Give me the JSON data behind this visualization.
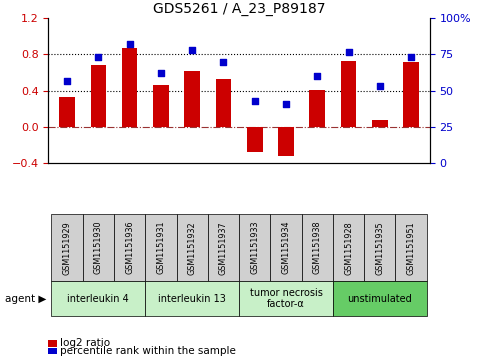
{
  "title": "GDS5261 / A_23_P89187",
  "samples": [
    "GSM1151929",
    "GSM1151930",
    "GSM1151936",
    "GSM1151931",
    "GSM1151932",
    "GSM1151937",
    "GSM1151933",
    "GSM1151934",
    "GSM1151938",
    "GSM1151928",
    "GSM1151935",
    "GSM1151951"
  ],
  "log2_ratio": [
    0.33,
    0.68,
    0.87,
    0.46,
    0.62,
    0.53,
    -0.27,
    -0.32,
    0.41,
    0.73,
    0.08,
    0.72
  ],
  "percentile_rank": [
    57,
    73,
    82,
    62,
    78,
    70,
    43,
    41,
    60,
    77,
    53,
    73
  ],
  "agent_groups": [
    {
      "label": "interleukin 4",
      "start": 0,
      "end": 3,
      "color": "#c8f0c8"
    },
    {
      "label": "interleukin 13",
      "start": 3,
      "end": 6,
      "color": "#c8f0c8"
    },
    {
      "label": "tumor necrosis\nfactor-α",
      "start": 6,
      "end": 9,
      "color": "#c8f0c8"
    },
    {
      "label": "unstimulated",
      "start": 9,
      "end": 12,
      "color": "#66cc66"
    }
  ],
  "bar_color": "#cc0000",
  "dot_color": "#0000cc",
  "ylim_left": [
    -0.4,
    1.2
  ],
  "ylim_right": [
    0,
    100
  ],
  "yticks_left": [
    -0.4,
    0,
    0.4,
    0.8,
    1.2
  ],
  "yticks_right": [
    0,
    25,
    50,
    75,
    100
  ],
  "hlines": [
    0.4,
    0.8
  ],
  "zero_line": 0,
  "bar_width": 0.5,
  "bg_color": "#ffffff",
  "sample_box_color": "#d0d0d0",
  "agent_label": "agent",
  "legend_items": [
    {
      "label": "log2 ratio",
      "type": "rect",
      "color": "#cc0000"
    },
    {
      "label": "percentile rank within the sample",
      "type": "square",
      "color": "#0000cc"
    }
  ]
}
